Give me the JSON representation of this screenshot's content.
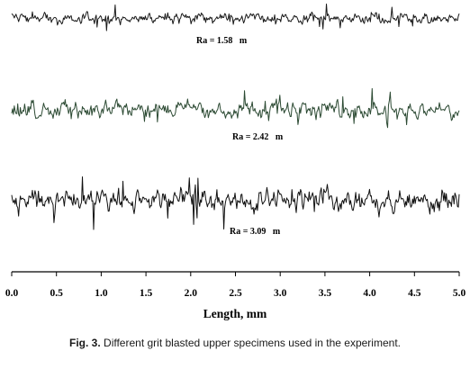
{
  "chart_data": {
    "type": "line",
    "title": "",
    "xlabel": "Length, mm",
    "ylabel": "",
    "xlim": [
      0.0,
      5.0
    ],
    "x_ticks": [
      "0.0",
      "0.5",
      "1.0",
      "1.5",
      "2.0",
      "2.5",
      "3.0",
      "3.5",
      "4.0",
      "4.5",
      "5.0"
    ],
    "grid": false,
    "series": [
      {
        "annotation": "Ra = 1.58   m",
        "color": "#1a1a1a",
        "ra": 1.58
      },
      {
        "annotation": "Ra = 2.42   m",
        "color": "#2c4a33",
        "ra": 2.42
      },
      {
        "annotation": "Ra = 3.09   m",
        "color": "#111111",
        "ra": 3.09
      }
    ]
  },
  "caption": {
    "label": "Fig. 3.",
    "text": " Different grit blasted upper specimens used in the experiment."
  }
}
